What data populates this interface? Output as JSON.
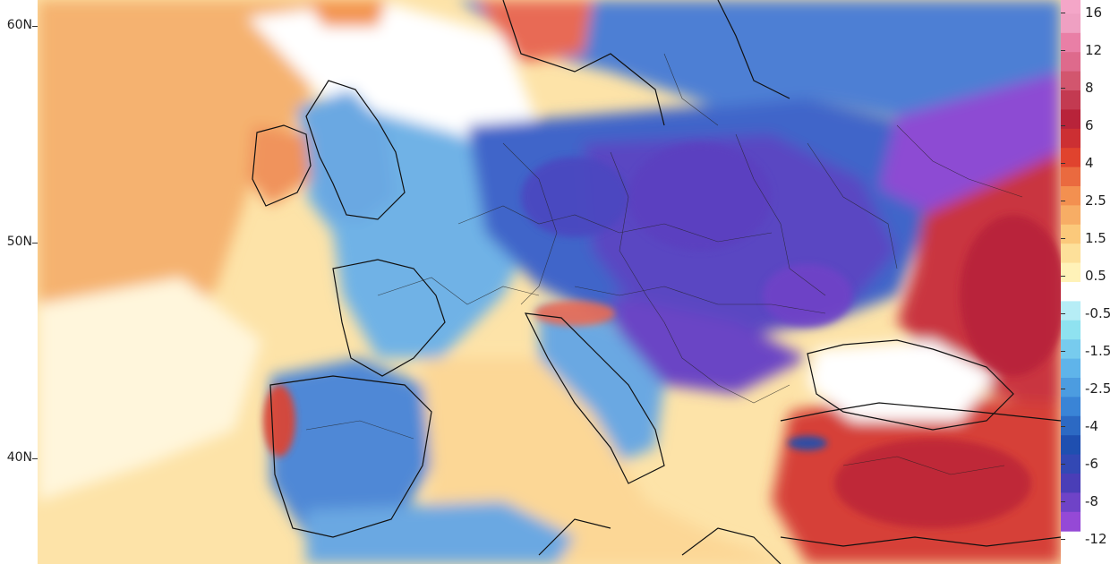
{
  "map": {
    "lat_labels": [
      "60N",
      "50N",
      "40N"
    ],
    "lat_values": [
      60,
      50,
      40
    ]
  },
  "legend": {
    "labels": [
      "16",
      "12",
      "8",
      "6",
      "4",
      "2.5",
      "1.5",
      "0.5",
      "-0.5",
      "-1.5",
      "-2.5",
      "-4",
      "-6",
      "-8",
      "-12"
    ],
    "colors": {
      "16": "#f4a6c8",
      "12": "#e97fa6",
      "8": "#d2566e",
      "6": "#b8233a",
      "4": "#e0432e",
      "2.5": "#f39050",
      "1.5": "#fbc97b",
      "0.5": "#fff2b8",
      "-0.5": "#ffffff",
      "-1.5": "#8fe2f0",
      "-2.5": "#5fb4ea",
      "-4": "#3a84d6",
      "-6": "#1f4fb0",
      "-8": "#4a3eb7",
      "-12": "#9549d6"
    },
    "band_colors": [
      "#f4a6c8",
      "#efa0c2",
      "#e97fa6",
      "#de6a8c",
      "#d2566e",
      "#c33a51",
      "#b8233a",
      "#cc2f33",
      "#e0432e",
      "#ea6a3f",
      "#f39050",
      "#f7ad65",
      "#fbc97b",
      "#fde09a",
      "#fff2b8",
      "#ffffff",
      "#b6edf6",
      "#8fe2f0",
      "#77cbee",
      "#5fb4ea",
      "#4c9ce0",
      "#3a84d6",
      "#2c69c3",
      "#1f4fb0",
      "#3348b4",
      "#4a3eb7",
      "#6f43c7",
      "#9549d6"
    ]
  }
}
